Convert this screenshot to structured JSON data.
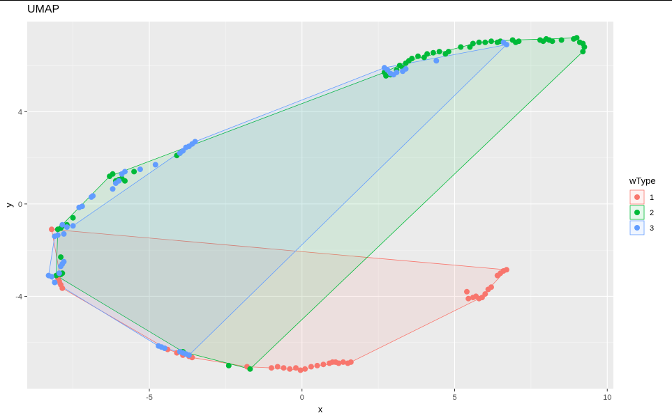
{
  "chart_data": {
    "type": "scatter",
    "title": "UMAP",
    "xlabel": "x",
    "ylabel": "y",
    "xlim": [
      -9.0,
      10.2
    ],
    "ylim": [
      -8.0,
      7.9
    ],
    "xticks": [
      -5,
      0,
      5,
      10
    ],
    "yticks": [
      -4,
      0,
      4
    ],
    "grid": true,
    "legend": {
      "title": "wType",
      "placement": "right"
    },
    "series": [
      {
        "name": "1",
        "color": "#F8766D",
        "points": [
          [
            -8.2,
            -1.1
          ],
          [
            -8.0,
            -3.2
          ],
          [
            -7.95,
            -3.35
          ],
          [
            -7.9,
            -3.5
          ],
          [
            -7.85,
            -3.65
          ],
          [
            -4.4,
            -6.3
          ],
          [
            -4.1,
            -6.45
          ],
          [
            -3.9,
            -6.55
          ],
          [
            -3.7,
            -6.6
          ],
          [
            -3.6,
            -6.65
          ],
          [
            -1.8,
            -7.05
          ],
          [
            -1.0,
            -7.1
          ],
          [
            -0.8,
            -7.05
          ],
          [
            -0.6,
            -7.1
          ],
          [
            -0.4,
            -7.15
          ],
          [
            -0.2,
            -7.1
          ],
          [
            -0.05,
            -7.2
          ],
          [
            0.1,
            -7.15
          ],
          [
            0.3,
            -7.05
          ],
          [
            0.5,
            -7.0
          ],
          [
            0.7,
            -6.95
          ],
          [
            0.9,
            -6.9
          ],
          [
            1.0,
            -6.85
          ],
          [
            1.1,
            -6.85
          ],
          [
            1.2,
            -6.9
          ],
          [
            1.35,
            -6.85
          ],
          [
            1.5,
            -6.9
          ],
          [
            1.6,
            -6.85
          ],
          [
            5.4,
            -3.8
          ],
          [
            5.45,
            -4.1
          ],
          [
            5.6,
            -4.05
          ],
          [
            5.7,
            -4.0
          ],
          [
            5.8,
            -4.1
          ],
          [
            5.9,
            -4.05
          ],
          [
            6.0,
            -3.9
          ],
          [
            6.1,
            -3.7
          ],
          [
            6.2,
            -3.6
          ],
          [
            6.4,
            -3.1
          ],
          [
            6.5,
            -3.0
          ],
          [
            6.6,
            -2.9
          ],
          [
            6.7,
            -2.85
          ]
        ],
        "hull": [
          [
            -8.2,
            -1.1
          ],
          [
            6.7,
            -2.85
          ],
          [
            6.1,
            -3.7
          ],
          [
            5.8,
            -4.1
          ],
          [
            1.6,
            -6.85
          ],
          [
            0.5,
            -7.0
          ],
          [
            -0.05,
            -7.2
          ],
          [
            -1.0,
            -7.1
          ],
          [
            -1.8,
            -7.05
          ],
          [
            -3.6,
            -6.65
          ],
          [
            -4.4,
            -6.3
          ],
          [
            -7.85,
            -3.65
          ],
          [
            -8.2,
            -1.1
          ]
        ]
      },
      {
        "name": "2",
        "color": "#00BA38",
        "points": [
          [
            -8.0,
            -1.1
          ],
          [
            -7.9,
            -1.05
          ],
          [
            -7.85,
            -0.95
          ],
          [
            -7.7,
            -0.9
          ],
          [
            -7.5,
            -0.6
          ],
          [
            -7.9,
            -2.3
          ],
          [
            -8.05,
            -3.1
          ],
          [
            -7.9,
            -3.05
          ],
          [
            -7.85,
            -3.0
          ],
          [
            -6.3,
            1.2
          ],
          [
            -6.2,
            1.3
          ],
          [
            -6.1,
            1.0
          ],
          [
            -6.0,
            1.05
          ],
          [
            -5.9,
            1.1
          ],
          [
            -5.8,
            1.0
          ],
          [
            -5.5,
            1.4
          ],
          [
            -4.1,
            2.1
          ],
          [
            -4.0,
            2.2
          ],
          [
            -3.9,
            -6.4
          ],
          [
            -2.4,
            -7.0
          ],
          [
            -1.7,
            -7.15
          ],
          [
            2.7,
            5.7
          ],
          [
            2.75,
            5.55
          ],
          [
            2.9,
            5.6
          ],
          [
            3.1,
            5.8
          ],
          [
            3.2,
            6.0
          ],
          [
            3.3,
            5.9
          ],
          [
            3.4,
            6.1
          ],
          [
            3.5,
            6.2
          ],
          [
            3.6,
            6.3
          ],
          [
            3.8,
            6.4
          ],
          [
            4.0,
            6.35
          ],
          [
            4.1,
            6.5
          ],
          [
            4.3,
            6.55
          ],
          [
            4.5,
            6.6
          ],
          [
            4.7,
            6.5
          ],
          [
            4.8,
            6.6
          ],
          [
            5.2,
            6.8
          ],
          [
            5.5,
            6.8
          ],
          [
            5.6,
            6.95
          ],
          [
            5.8,
            7.0
          ],
          [
            6.0,
            7.0
          ],
          [
            6.2,
            7.05
          ],
          [
            6.4,
            7.0
          ],
          [
            6.5,
            7.05
          ],
          [
            6.9,
            7.1
          ],
          [
            7.0,
            7.0
          ],
          [
            7.1,
            7.05
          ],
          [
            7.8,
            7.1
          ],
          [
            7.9,
            7.05
          ],
          [
            8.0,
            7.15
          ],
          [
            8.1,
            7.1
          ],
          [
            8.2,
            7.05
          ],
          [
            8.5,
            7.1
          ],
          [
            8.9,
            7.15
          ],
          [
            9.0,
            7.2
          ],
          [
            9.1,
            7.0
          ],
          [
            9.2,
            6.95
          ],
          [
            9.25,
            6.8
          ],
          [
            9.2,
            6.6
          ]
        ],
        "hull": [
          [
            -8.0,
            -1.1
          ],
          [
            -6.3,
            1.2
          ],
          [
            2.7,
            5.7
          ],
          [
            3.5,
            6.2
          ],
          [
            5.8,
            7.0
          ],
          [
            6.9,
            7.1
          ],
          [
            8.1,
            7.15
          ],
          [
            9.0,
            7.2
          ],
          [
            9.25,
            6.8
          ],
          [
            9.2,
            6.6
          ],
          [
            -1.7,
            -7.15
          ],
          [
            -3.9,
            -6.4
          ],
          [
            -8.05,
            -3.1
          ],
          [
            -8.0,
            -1.1
          ]
        ]
      },
      {
        "name": "3",
        "color": "#619CFF",
        "points": [
          [
            -8.1,
            -1.4
          ],
          [
            -8.0,
            -1.35
          ],
          [
            -7.85,
            -0.9
          ],
          [
            -7.8,
            -1.3
          ],
          [
            -7.7,
            -1.0
          ],
          [
            -7.5,
            -0.95
          ],
          [
            -8.3,
            -3.1
          ],
          [
            -8.2,
            -3.15
          ],
          [
            -8.1,
            -3.4
          ],
          [
            -7.95,
            -3.0
          ],
          [
            -7.9,
            -2.7
          ],
          [
            -7.85,
            -2.6
          ],
          [
            -7.8,
            -2.5
          ],
          [
            -7.3,
            -0.15
          ],
          [
            -7.2,
            -0.1
          ],
          [
            -6.9,
            0.3
          ],
          [
            -6.85,
            0.35
          ],
          [
            -6.2,
            0.65
          ],
          [
            -6.1,
            0.9
          ],
          [
            -6.0,
            1.0
          ],
          [
            -5.9,
            1.3
          ],
          [
            -5.8,
            1.4
          ],
          [
            -5.3,
            1.5
          ],
          [
            -4.8,
            1.7
          ],
          [
            -4.0,
            2.2
          ],
          [
            -3.9,
            2.3
          ],
          [
            -3.8,
            2.45
          ],
          [
            -3.7,
            2.5
          ],
          [
            -3.6,
            2.6
          ],
          [
            -3.5,
            2.7
          ],
          [
            -4.7,
            -6.15
          ],
          [
            -4.6,
            -6.2
          ],
          [
            -4.5,
            -6.25
          ],
          [
            -4.0,
            -6.4
          ],
          [
            -3.9,
            -6.45
          ],
          [
            -3.8,
            -6.5
          ],
          [
            -3.7,
            -6.55
          ],
          [
            2.7,
            5.9
          ],
          [
            2.8,
            5.8
          ],
          [
            2.9,
            5.65
          ],
          [
            3.0,
            5.6
          ],
          [
            3.1,
            5.7
          ],
          [
            3.3,
            5.75
          ],
          [
            3.4,
            5.85
          ],
          [
            4.4,
            6.2
          ],
          [
            6.6,
            7.0
          ],
          [
            6.7,
            6.9
          ]
        ],
        "hull": [
          [
            -7.85,
            -0.9
          ],
          [
            -7.5,
            -0.95
          ],
          [
            -3.5,
            2.7
          ],
          [
            2.7,
            5.9
          ],
          [
            6.7,
            6.9
          ],
          [
            -3.7,
            -6.55
          ],
          [
            -4.7,
            -6.15
          ],
          [
            -8.1,
            -3.4
          ],
          [
            -8.3,
            -3.1
          ],
          [
            -8.1,
            -1.4
          ],
          [
            -7.85,
            -0.9
          ]
        ]
      }
    ]
  }
}
